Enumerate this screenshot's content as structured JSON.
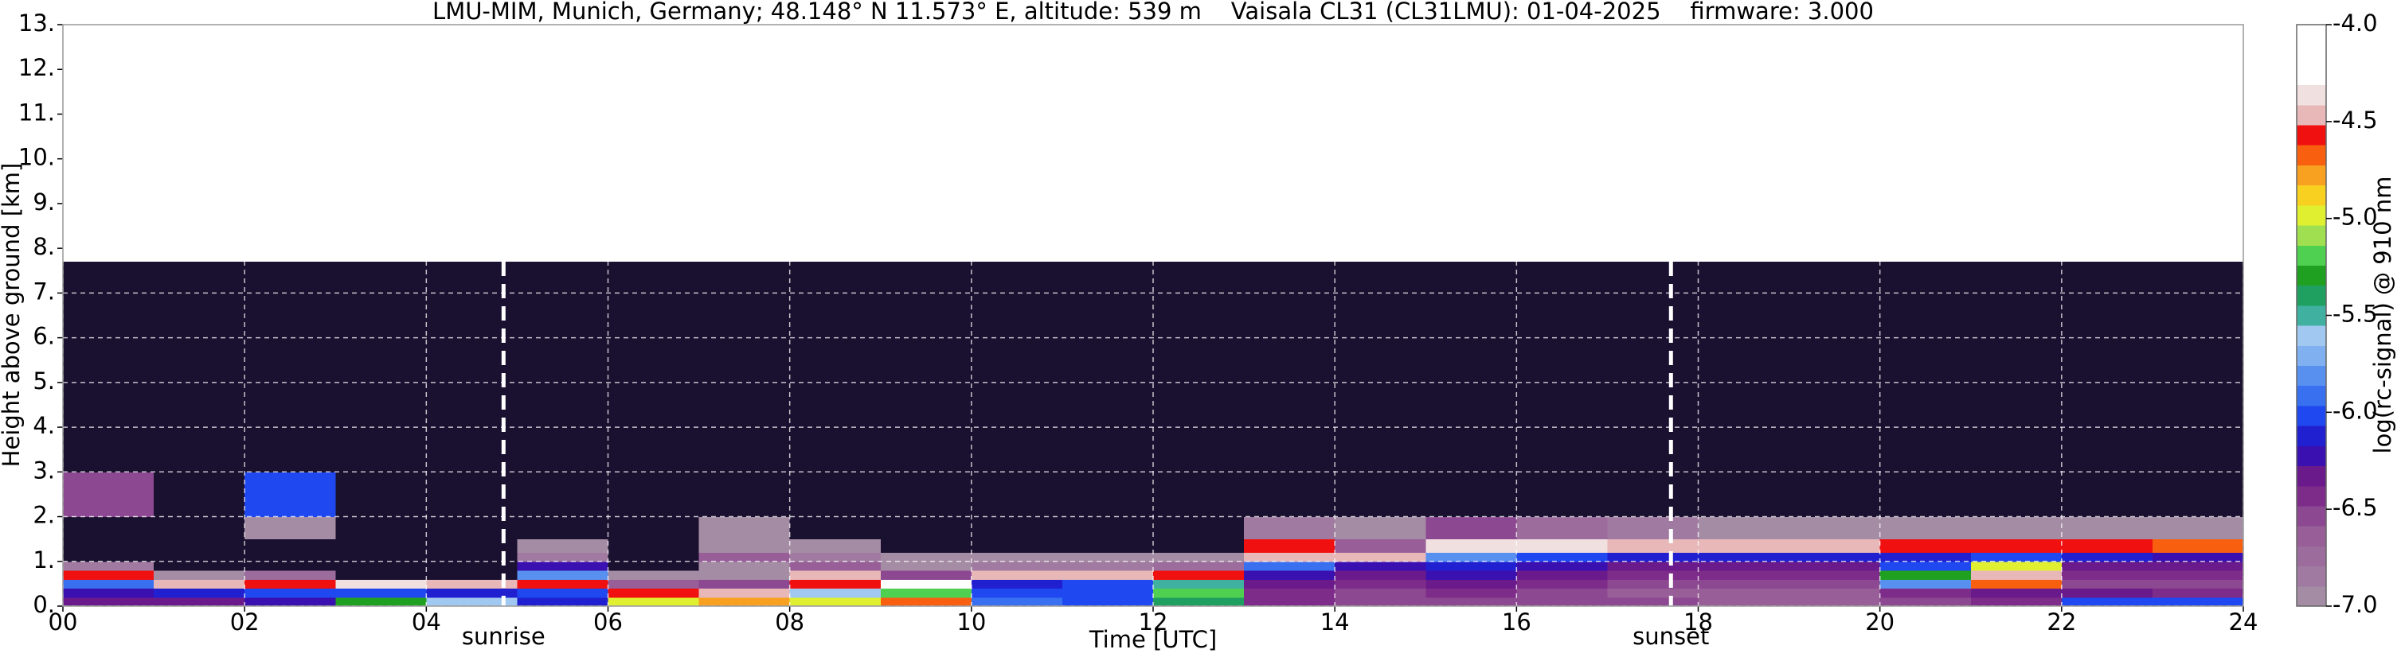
{
  "chart_data": {
    "type": "heatmap",
    "title": "LMU-MIM, Munich, Germany; 48.148° N 11.573° E, altitude: 539 m    Vaisala CL31 (CL31LMU): 01-04-2025    firmware: 3.000",
    "x_label": "Time [UTC]",
    "y_label": "Height above ground [km]",
    "colorbar_label": "log(rc-signal) @ 910 nm",
    "xlim": [
      0,
      24
    ],
    "ylim": [
      0,
      13
    ],
    "xticks": [
      {
        "value": 0,
        "label": "00"
      },
      {
        "value": 2,
        "label": "02"
      },
      {
        "value": 4,
        "label": "04"
      },
      {
        "value": 6,
        "label": "06"
      },
      {
        "value": 8,
        "label": "08"
      },
      {
        "value": 10,
        "label": "10"
      },
      {
        "value": 12,
        "label": "12"
      },
      {
        "value": 14,
        "label": "14"
      },
      {
        "value": 16,
        "label": "16"
      },
      {
        "value": 18,
        "label": "18"
      },
      {
        "value": 20,
        "label": "20"
      },
      {
        "value": 22,
        "label": "22"
      },
      {
        "value": 24,
        "label": "24"
      }
    ],
    "yticks": [
      {
        "value": 0,
        "label": "0."
      },
      {
        "value": 1,
        "label": "1."
      },
      {
        "value": 2,
        "label": "2."
      },
      {
        "value": 3,
        "label": "3."
      },
      {
        "value": 4,
        "label": "4."
      },
      {
        "value": 5,
        "label": "5."
      },
      {
        "value": 6,
        "label": "6."
      },
      {
        "value": 7,
        "label": "7."
      },
      {
        "value": 8,
        "label": "8."
      },
      {
        "value": 9,
        "label": "9."
      },
      {
        "value": 10,
        "label": "10."
      },
      {
        "value": 11,
        "label": "11."
      },
      {
        "value": 12,
        "label": "12."
      },
      {
        "value": 13,
        "label": "13."
      }
    ],
    "clim": [
      -7,
      -4
    ],
    "cticks": [
      {
        "value": -4,
        "label": "-4.0"
      },
      {
        "value": -4.5,
        "label": "-4.5"
      },
      {
        "value": -5,
        "label": "-5.0"
      },
      {
        "value": -5.5,
        "label": "-5.5"
      },
      {
        "value": -6,
        "label": "-6.0"
      },
      {
        "value": -6.5,
        "label": "-6.5"
      },
      {
        "value": -7,
        "label": "-7.0"
      }
    ],
    "colors": [
      "#a48ca4",
      "#a07aa0",
      "#9c6c9c",
      "#985e98",
      "#8c4890",
      "#7e2c8a",
      "#6a1a8a",
      "#3a10b0",
      "#2020d0",
      "#2048f0",
      "#3870f0",
      "#5890f0",
      "#80b0f0",
      "#a0c8f0",
      "#40b0a0",
      "#20a060",
      "#20a020",
      "#50d050",
      "#a0e050",
      "#e0f030",
      "#f8d020",
      "#f8a020",
      "#f86010",
      "#f01010",
      "#e8b8b8",
      "#f0e0e0",
      "#ffffff",
      "#ffffff",
      "#ffffff"
    ],
    "under_color": "#1a1030",
    "grid": true,
    "x_edges": [
      0,
      1,
      2,
      3,
      4,
      5,
      6,
      7,
      8,
      9,
      10,
      11,
      12,
      13,
      14,
      15,
      16,
      17,
      18,
      19,
      20,
      21,
      22,
      23,
      24
    ],
    "y_edges": [
      0,
      0.2,
      0.4,
      0.6,
      0.8,
      1.0,
      1.2,
      1.5,
      2.0,
      3.0,
      5.0,
      7.7
    ],
    "z": [
      [
        -6.3,
        -6.2,
        -5.9,
        -4.6,
        -6.8,
        -7.2,
        -7.2,
        -7.1,
        -6.5,
        -7.4,
        -7.5
      ],
      [
        -6.3,
        -6.1,
        -4.5,
        -6.9,
        -7.2,
        -7.2,
        -7.2,
        -7.2,
        -7.3,
        -7.4,
        -7.5
      ],
      [
        -6.2,
        -6.0,
        -4.6,
        -6.7,
        -7.1,
        -7.2,
        -7.1,
        -7.0,
        -6.0,
        -7.4,
        -7.5
      ],
      [
        -5.3,
        -6.0,
        -4.4,
        -7.1,
        -7.2,
        -7.2,
        -7.2,
        -7.2,
        -7.3,
        -7.4,
        -7.5
      ],
      [
        -5.6,
        -6.1,
        -4.5,
        -7.2,
        -7.2,
        -7.2,
        -7.2,
        -7.2,
        -7.3,
        -7.4,
        -7.5
      ],
      [
        -6.1,
        -6.0,
        -4.6,
        -5.8,
        -6.2,
        -6.8,
        -7.0,
        -7.1,
        -7.3,
        -7.4,
        -7.5
      ],
      [
        -5.0,
        -4.6,
        -6.6,
        -7.0,
        -7.1,
        -7.1,
        -7.2,
        -7.2,
        -7.3,
        -7.4,
        -7.5
      ],
      [
        -4.8,
        -4.5,
        -6.5,
        -6.9,
        -7.0,
        -6.6,
        -6.9,
        -6.9,
        -7.2,
        -7.3,
        -7.4
      ],
      [
        -5.0,
        -5.6,
        -4.6,
        -4.5,
        -6.6,
        -6.8,
        -7.0,
        -7.1,
        -7.2,
        -7.3,
        -7.4
      ],
      [
        -4.7,
        -5.2,
        -4.3,
        -6.5,
        -6.9,
        -7.0,
        -7.1,
        -7.1,
        -7.2,
        -7.3,
        -7.4
      ],
      [
        -5.9,
        -6.0,
        -6.1,
        -4.5,
        -6.8,
        -7.0,
        -7.1,
        -7.1,
        -7.2,
        -7.3,
        -7.4
      ],
      [
        -6.0,
        -6.0,
        -6.0,
        -4.5,
        -6.8,
        -7.0,
        -7.1,
        -7.1,
        -7.2,
        -7.3,
        -7.4
      ],
      [
        -5.4,
        -5.2,
        -5.5,
        -4.6,
        -6.7,
        -7.0,
        -7.1,
        -7.1,
        -7.2,
        -7.3,
        -7.4
      ],
      [
        -6.4,
        -6.4,
        -6.3,
        -6.2,
        -5.9,
        -4.5,
        -4.6,
        -6.8,
        -7.2,
        -7.3,
        -7.4
      ],
      [
        -6.5,
        -6.5,
        -6.4,
        -6.3,
        -6.2,
        -4.5,
        -6.6,
        -6.9,
        -7.2,
        -7.3,
        -7.4
      ],
      [
        -6.5,
        -6.4,
        -6.3,
        -6.2,
        -6.1,
        -5.8,
        -4.4,
        -6.5,
        -7.2,
        -7.3,
        -7.4
      ],
      [
        -6.5,
        -6.5,
        -6.4,
        -6.3,
        -6.2,
        -6.0,
        -4.4,
        -6.7,
        -7.2,
        -7.3,
        -7.4
      ],
      [
        -6.5,
        -6.6,
        -6.5,
        -6.4,
        -6.3,
        -6.1,
        -4.5,
        -6.8,
        -7.3,
        -7.4,
        -7.5
      ],
      [
        -6.6,
        -6.6,
        -6.5,
        -6.4,
        -6.3,
        -6.1,
        -4.5,
        -6.9,
        -7.3,
        -7.4,
        -7.5
      ],
      [
        -6.6,
        -6.6,
        -6.5,
        -6.4,
        -6.3,
        -6.1,
        -4.5,
        -6.9,
        -7.3,
        -7.4,
        -7.5
      ],
      [
        -6.5,
        -6.4,
        -5.8,
        -5.3,
        -6.0,
        -6.1,
        -4.6,
        -6.9,
        -7.3,
        -7.4,
        -7.5
      ],
      [
        -6.4,
        -6.3,
        -4.7,
        -4.5,
        -5.0,
        -6.0,
        -4.6,
        -6.9,
        -7.3,
        -7.4,
        -7.5
      ],
      [
        -6.0,
        -6.3,
        -6.5,
        -6.4,
        -6.3,
        -6.1,
        -4.6,
        -6.9,
        -7.3,
        -7.4,
        -7.5
      ],
      [
        -6.0,
        -6.4,
        -6.5,
        -6.4,
        -6.3,
        -6.2,
        -4.7,
        -7.0,
        -7.3,
        -7.4,
        -7.5
      ]
    ],
    "markers": [
      {
        "label": "sunrise",
        "x": 4.85
      },
      {
        "label": "sunset",
        "x": 17.7
      }
    ]
  }
}
